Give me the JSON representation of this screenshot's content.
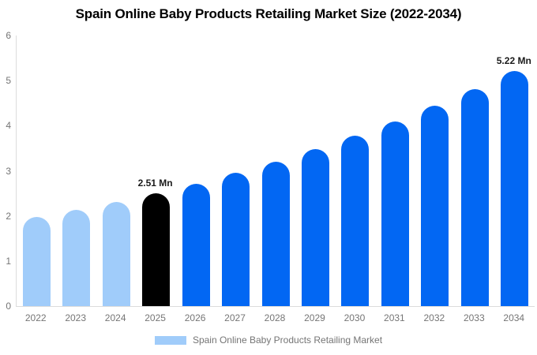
{
  "colors": {
    "historical": "#A0CCFA",
    "base_year": "#000000",
    "forecast": "#0267F3",
    "axis_line": "#DCDCDC",
    "tick_text": "#757575",
    "annotation_text": "#1A1A1A",
    "title_text": "#000000"
  },
  "chart_data": {
    "type": "bar",
    "title": "Spain Online Baby Products Retailing Market Size (2022-2034)",
    "categories": [
      "2022",
      "2023",
      "2024",
      "2025",
      "2026",
      "2027",
      "2028",
      "2029",
      "2030",
      "2031",
      "2032",
      "2033",
      "2034"
    ],
    "values": [
      1.97,
      2.13,
      2.31,
      2.51,
      2.72,
      2.95,
      3.2,
      3.48,
      3.77,
      4.09,
      4.44,
      4.81,
      5.22
    ],
    "bar_colors": [
      "#A0CCFA",
      "#A0CCFA",
      "#A0CCFA",
      "#000000",
      "#0267F3",
      "#0267F3",
      "#0267F3",
      "#0267F3",
      "#0267F3",
      "#0267F3",
      "#0267F3",
      "#0267F3",
      "#0267F3"
    ],
    "unit": "Mn",
    "xlabel": "",
    "ylabel": "",
    "ylim": [
      0,
      6
    ],
    "yticks": [
      0,
      1,
      2,
      3,
      4,
      5,
      6
    ],
    "grid": false,
    "annotations": [
      {
        "index": 3,
        "text": "2.51 Mn"
      },
      {
        "index": 12,
        "text": "5.22 Mn"
      }
    ],
    "legend": {
      "position": "bottom",
      "label": "Spain Online Baby Products Retailing Market",
      "swatch_color": "#A0CCFA"
    }
  }
}
